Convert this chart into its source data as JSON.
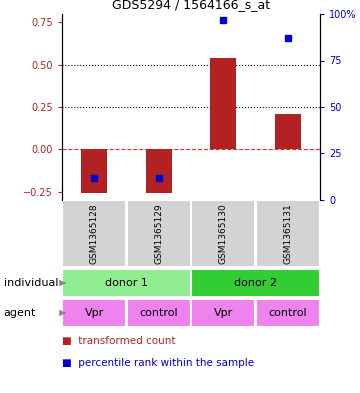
{
  "title": "GDS5294 / 1564166_s_at",
  "samples": [
    "GSM1365128",
    "GSM1365129",
    "GSM1365130",
    "GSM1365131"
  ],
  "red_values": [
    -0.26,
    -0.26,
    0.54,
    0.21
  ],
  "blue_percentile": [
    12,
    12,
    97,
    87
  ],
  "ylim_left": [
    -0.3,
    0.8
  ],
  "ylim_right": [
    0,
    100
  ],
  "yticks_left": [
    -0.25,
    0.0,
    0.25,
    0.5,
    0.75
  ],
  "yticks_right": [
    0,
    25,
    50,
    75,
    100
  ],
  "hlines_dotted": [
    0.25,
    0.5
  ],
  "hline_dashed": 0.0,
  "bar_width": 0.4,
  "bar_color": "#b22222",
  "dot_color": "#0000cc",
  "individual_groups": [
    {
      "label": "donor 1",
      "cols": [
        0,
        1
      ],
      "color": "#90ee90"
    },
    {
      "label": "donor 2",
      "cols": [
        2,
        3
      ],
      "color": "#32cd32"
    }
  ],
  "agent_labels": [
    "Vpr",
    "control",
    "Vpr",
    "control"
  ],
  "agent_color": "#ee82ee",
  "row_label_individual": "individual",
  "row_label_agent": "agent",
  "legend_red": "transformed count",
  "legend_blue": "percentile rank within the sample",
  "plot_bg": "#ffffff",
  "xticklabel_bg": "#d3d3d3",
  "arrow_color": "#888888",
  "fig_width": 3.6,
  "fig_height": 3.93,
  "dpi": 100
}
